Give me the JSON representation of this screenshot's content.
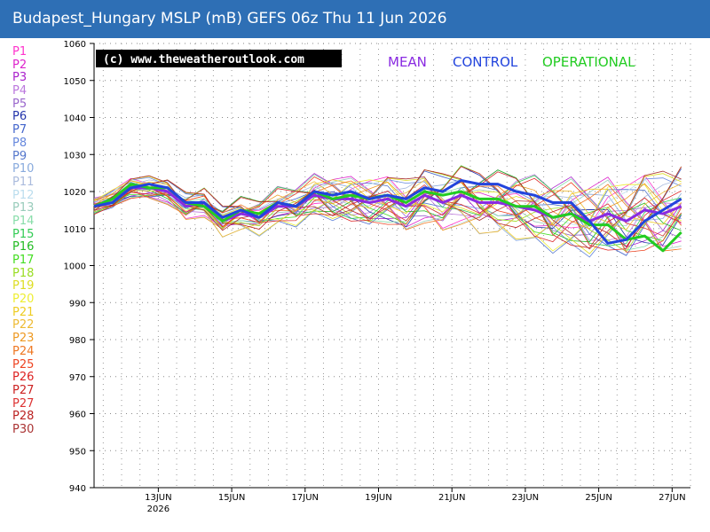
{
  "header": {
    "title": "Budapest_Hungary MSLP (mB) GEFS 06z Thu 11 Jun 2026"
  },
  "copyright": "(c) www.theweatheroutlook.com",
  "legend_top": [
    {
      "label": "MEAN",
      "color": "#8a2be2"
    },
    {
      "label": "CONTROL",
      "color": "#2244dd"
    },
    {
      "label": "OPERATIONAL",
      "color": "#22cc22"
    }
  ],
  "members": [
    {
      "label": "P1",
      "color": "#ff33cc"
    },
    {
      "label": "P2",
      "color": "#dd22cc"
    },
    {
      "label": "P3",
      "color": "#aa22cc"
    },
    {
      "label": "P4",
      "color": "#bb77dd"
    },
    {
      "label": "P5",
      "color": "#9966cc"
    },
    {
      "label": "P6",
      "color": "#2233aa"
    },
    {
      "label": "P7",
      "color": "#4466cc"
    },
    {
      "label": "P8",
      "color": "#6688dd"
    },
    {
      "label": "P9",
      "color": "#5577cc"
    },
    {
      "label": "P10",
      "color": "#88aadd"
    },
    {
      "label": "P11",
      "color": "#aabbdd"
    },
    {
      "label": "P12",
      "color": "#bbddee"
    },
    {
      "label": "P13",
      "color": "#99ccbb"
    },
    {
      "label": "P14",
      "color": "#88ddaa"
    },
    {
      "label": "P15",
      "color": "#33cc55"
    },
    {
      "label": "P16",
      "color": "#22bb22"
    },
    {
      "label": "P17",
      "color": "#44dd22"
    },
    {
      "label": "P18",
      "color": "#99dd22"
    },
    {
      "label": "P19",
      "color": "#dddd22"
    },
    {
      "label": "P20",
      "color": "#eeee33"
    },
    {
      "label": "P21",
      "color": "#eecc22"
    },
    {
      "label": "P22",
      "color": "#eebb33"
    },
    {
      "label": "P23",
      "color": "#ee9922"
    },
    {
      "label": "P24",
      "color": "#ee7722"
    },
    {
      "label": "P25",
      "color": "#ee4422"
    },
    {
      "label": "P26",
      "color": "#dd2222"
    },
    {
      "label": "P27",
      "color": "#cc2222"
    },
    {
      "label": "P27",
      "color": "#dd3333"
    },
    {
      "label": "P28",
      "color": "#bb2222"
    },
    {
      "label": "P30",
      "color": "#aa3333"
    }
  ],
  "chart_data": {
    "type": "line",
    "title": "Budapest_Hungary MSLP (mB) GEFS 06z Thu 11 Jun 2026",
    "ylabel": "",
    "xlabel": "",
    "ylim": [
      940,
      1060
    ],
    "yticks": [
      940,
      950,
      960,
      970,
      980,
      990,
      1000,
      1010,
      1020,
      1030,
      1040,
      1050,
      1060
    ],
    "xlim_day": [
      11.25,
      27.5
    ],
    "xticks": [
      {
        "day": 13,
        "label": "13JUN",
        "sublabel": "2026"
      },
      {
        "day": 15,
        "label": "15JUN",
        "sublabel": ""
      },
      {
        "day": 17,
        "label": "17JUN",
        "sublabel": ""
      },
      {
        "day": 19,
        "label": "19JUN",
        "sublabel": ""
      },
      {
        "day": 21,
        "label": "21JUN",
        "sublabel": ""
      },
      {
        "day": 23,
        "label": "23JUN",
        "sublabel": ""
      },
      {
        "day": 25,
        "label": "25JUN",
        "sublabel": ""
      },
      {
        "day": 27,
        "label": "27JUN",
        "sublabel": ""
      }
    ],
    "grid": true,
    "series": [
      {
        "name": "MEAN",
        "color": "#8a2be2",
        "width": 3,
        "days": [
          11.25,
          11.75,
          12.25,
          12.75,
          13.25,
          13.75,
          14.25,
          14.75,
          15.25,
          15.75,
          16.25,
          16.75,
          17.25,
          17.75,
          18.25,
          18.75,
          19.25,
          19.75,
          20.25,
          20.75,
          21.25,
          21.75,
          22.25,
          22.75,
          23.25,
          23.75,
          24.25,
          24.75,
          25.25,
          25.75,
          26.25,
          26.75,
          27.25
        ],
        "values": [
          1016,
          1018,
          1021,
          1021,
          1020,
          1016,
          1017,
          1012,
          1014,
          1013,
          1016,
          1016,
          1019,
          1018,
          1018,
          1017,
          1018,
          1016,
          1019,
          1017,
          1019,
          1017,
          1017,
          1016,
          1015,
          1013,
          1014,
          1012,
          1014,
          1012,
          1015,
          1014,
          1016
        ]
      },
      {
        "name": "CONTROL",
        "color": "#2244dd",
        "width": 3,
        "days": [
          11.25,
          11.75,
          12.25,
          12.75,
          13.25,
          13.75,
          14.25,
          14.75,
          15.25,
          15.75,
          16.25,
          16.75,
          17.25,
          17.75,
          18.25,
          18.75,
          19.25,
          19.75,
          20.25,
          20.75,
          21.25,
          21.75,
          22.25,
          22.75,
          23.25,
          23.75,
          24.25,
          24.75,
          25.25,
          25.75,
          26.25,
          26.75,
          27.25
        ],
        "values": [
          1016,
          1017,
          1021,
          1022,
          1021,
          1017,
          1017,
          1013,
          1015,
          1013,
          1017,
          1016,
          1020,
          1019,
          1020,
          1018,
          1019,
          1018,
          1021,
          1020,
          1023,
          1022,
          1022,
          1020,
          1019,
          1017,
          1017,
          1012,
          1006,
          1007,
          1012,
          1015,
          1018
        ]
      },
      {
        "name": "OPERATIONAL",
        "color": "#22cc22",
        "width": 3,
        "days": [
          11.25,
          11.75,
          12.25,
          12.75,
          13.25,
          13.75,
          14.25,
          14.75,
          15.25,
          15.75,
          16.25,
          16.75,
          17.25,
          17.75,
          18.25,
          18.75,
          19.25,
          19.75,
          20.25,
          20.75,
          21.25,
          21.75,
          22.25,
          22.75,
          23.25,
          23.75,
          24.25,
          24.75,
          25.25,
          25.75,
          26.25,
          26.75,
          27.25
        ],
        "values": [
          1016,
          1018,
          1022,
          1021,
          1021,
          1017,
          1016,
          1012,
          1015,
          1014,
          1017,
          1016,
          1020,
          1018,
          1019,
          1018,
          1019,
          1017,
          1020,
          1019,
          1020,
          1018,
          1018,
          1016,
          1016,
          1013,
          1014,
          1011,
          1011,
          1007,
          1008,
          1004,
          1009
        ]
      }
    ]
  }
}
